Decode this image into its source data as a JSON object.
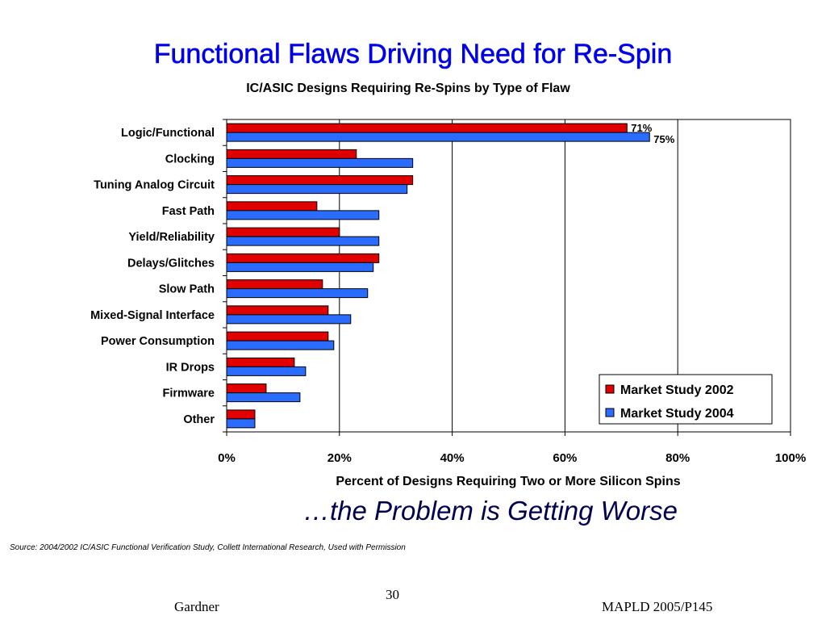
{
  "slide": {
    "title": "Functional Flaws Driving Need for Re-Spin",
    "tagline": "…the Problem is Getting Worse",
    "source": "Source:  2004/2002 IC/ASIC Functional Verification Study, Collett International Research, Used with Permission",
    "page_number": "30",
    "footer_left": "Gardner",
    "footer_right": "MAPLD 2005/P145"
  },
  "chart_data": {
    "type": "bar",
    "orientation": "horizontal",
    "title": "IC/ASIC Designs Requiring Re-Spins by Type of Flaw",
    "xlabel": "Percent of Designs Requiring Two or More Silicon Spins",
    "ylabel": "",
    "xlim": [
      0,
      100
    ],
    "x_ticks": [
      "0%",
      "20%",
      "40%",
      "60%",
      "80%",
      "100%"
    ],
    "grid": "vertical at 20% steps",
    "categories": [
      "Logic/Functional",
      "Clocking",
      "Tuning Analog Circuit",
      "Fast Path",
      "Yield/Reliability",
      "Delays/Glitches",
      "Slow Path",
      "Mixed-Signal Interface",
      "Power Consumption",
      "IR Drops",
      "Firmware",
      "Other"
    ],
    "series": [
      {
        "name": "Market Study 2002",
        "color": "#e00000",
        "values": [
          71,
          23,
          33,
          16,
          20,
          27,
          17,
          18,
          18,
          12,
          7,
          5
        ]
      },
      {
        "name": "Market Study 2004",
        "color": "#2a6cff",
        "values": [
          75,
          33,
          32,
          27,
          27,
          26,
          25,
          22,
          19,
          14,
          13,
          5
        ]
      }
    ],
    "data_labels": [
      {
        "series": 0,
        "category": 0,
        "text": "71%"
      },
      {
        "series": 1,
        "category": 0,
        "text": "75%"
      }
    ],
    "legend_position": "bottom-right"
  }
}
